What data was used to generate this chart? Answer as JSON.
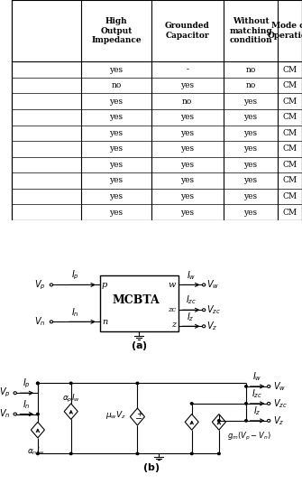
{
  "fig_width": 3.35,
  "fig_height": 5.36,
  "dpi": 100,
  "table": {
    "col_headers": [
      "High\nOutput\nImpedance",
      "Grounded\nCapacitor",
      "Without\nmatching\ncondition",
      "Mode of\nOperation"
    ],
    "rows": [
      [
        "yes",
        "-",
        "no",
        "CM"
      ],
      [
        "no",
        "yes",
        "no",
        "CM"
      ],
      [
        "yes",
        "no",
        "yes",
        "CM"
      ],
      [
        "yes",
        "yes",
        "yes",
        "CM"
      ],
      [
        "yes",
        "yes",
        "yes",
        "CM"
      ],
      [
        "yes",
        "yes",
        "yes",
        "CM"
      ],
      [
        "yes",
        "yes",
        "yes",
        "CM"
      ],
      [
        "yes",
        "yes",
        "yes",
        "CM"
      ],
      [
        "yes",
        "yes",
        "yes",
        "CM"
      ],
      [
        "yes",
        "yes",
        "yes",
        "CM"
      ]
    ]
  }
}
